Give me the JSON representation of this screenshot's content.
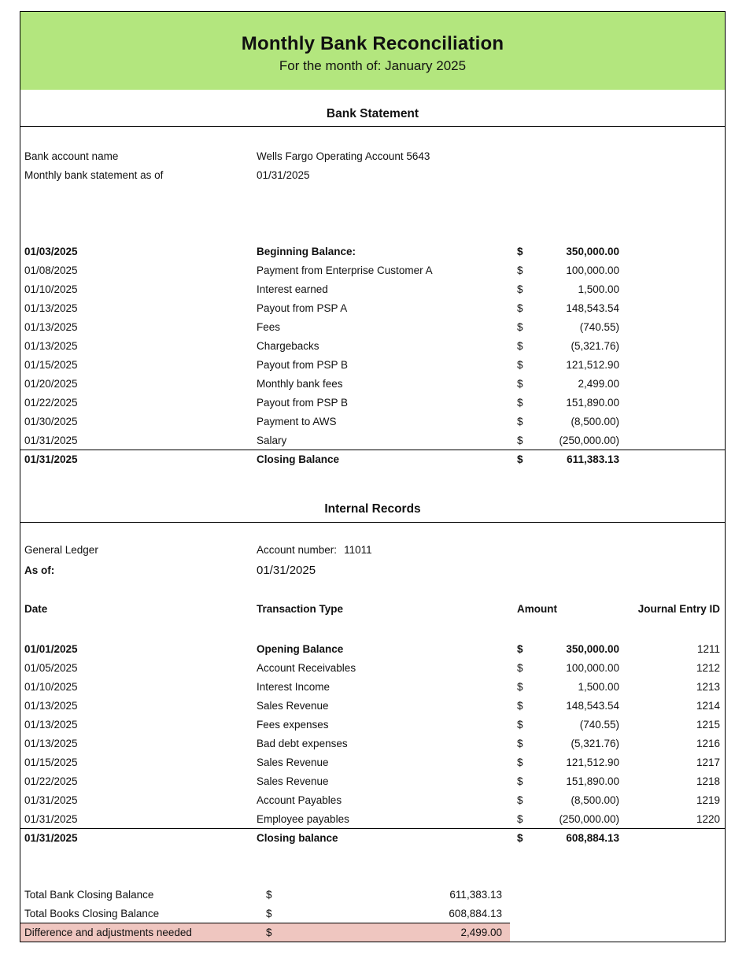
{
  "header": {
    "title": "Monthly Bank Reconciliation",
    "subtitle": "For the month of: January 2025",
    "banner_color": "#b3e67e"
  },
  "bank_statement": {
    "section_title": "Bank Statement",
    "info": {
      "account_label": "Bank account name",
      "account_value": "Wells Fargo Operating Account 5643",
      "statement_label": "Monthly bank statement as of",
      "statement_value": "01/31/2025"
    },
    "rows": [
      {
        "date": "01/03/2025",
        "description": "Beginning Balance:",
        "currency": "$",
        "amount": "350,000.00",
        "bold": true
      },
      {
        "date": "01/08/2025",
        "description": "Payment from Enterprise Customer A",
        "currency": "$",
        "amount": "100,000.00"
      },
      {
        "date": "01/10/2025",
        "description": "Interest earned",
        "currency": "$",
        "amount": "1,500.00"
      },
      {
        "date": "01/13/2025",
        "description": "Payout from PSP A",
        "currency": "$",
        "amount": "148,543.54"
      },
      {
        "date": "01/13/2025",
        "description": "Fees",
        "currency": "$",
        "amount": "(740.55)"
      },
      {
        "date": "01/13/2025",
        "description": "Chargebacks",
        "currency": "$",
        "amount": "(5,321.76)"
      },
      {
        "date": "01/15/2025",
        "description": "Payout from PSP B",
        "currency": "$",
        "amount": "121,512.90"
      },
      {
        "date": "01/20/2025",
        "description": "Monthly bank fees",
        "currency": "$",
        "amount": "2,499.00"
      },
      {
        "date": "01/22/2025",
        "description": "Payout from PSP B",
        "currency": "$",
        "amount": "151,890.00"
      },
      {
        "date": "01/30/2025",
        "description": "Payment to AWS",
        "currency": "$",
        "amount": "(8,500.00)"
      },
      {
        "date": "01/31/2025",
        "description": "Salary",
        "currency": "$",
        "amount": "(250,000.00)"
      }
    ],
    "closing": {
      "date": "01/31/2025",
      "description": "Closing Balance",
      "currency": "$",
      "amount": "611,383.13"
    }
  },
  "internal_records": {
    "section_title": "Internal Records",
    "ledger_label": "General Ledger",
    "account_number_label": "Account number:",
    "account_number": "11011",
    "as_of_label": "As of:",
    "as_of_date": "01/31/2025",
    "columns": {
      "date": "Date",
      "type": "Transaction Type",
      "amount": "Amount",
      "journal": "Journal Entry ID"
    },
    "rows": [
      {
        "date": "01/01/2025",
        "description": "Opening Balance",
        "currency": "$",
        "amount": "350,000.00",
        "journal_id": "1211",
        "bold": true
      },
      {
        "date": "01/05/2025",
        "description": "Account Receivables",
        "currency": "$",
        "amount": "100,000.00",
        "journal_id": "1212"
      },
      {
        "date": "01/10/2025",
        "description": "Interest Income",
        "currency": "$",
        "amount": "1,500.00",
        "journal_id": "1213"
      },
      {
        "date": "01/13/2025",
        "description": "Sales Revenue",
        "currency": "$",
        "amount": "148,543.54",
        "journal_id": "1214"
      },
      {
        "date": "01/13/2025",
        "description": "Fees expenses",
        "currency": "$",
        "amount": "(740.55)",
        "journal_id": "1215"
      },
      {
        "date": "01/13/2025",
        "description": "Bad debt expenses",
        "currency": "$",
        "amount": "(5,321.76)",
        "journal_id": "1216"
      },
      {
        "date": "01/15/2025",
        "description": "Sales Revenue",
        "currency": "$",
        "amount": "121,512.90",
        "journal_id": "1217"
      },
      {
        "date": "01/22/2025",
        "description": "Sales Revenue",
        "currency": "$",
        "amount": "151,890.00",
        "journal_id": "1218"
      },
      {
        "date": "01/31/2025",
        "description": "Account Payables",
        "currency": "$",
        "amount": "(8,500.00)",
        "journal_id": "1219"
      },
      {
        "date": "01/31/2025",
        "description": "Employee payables",
        "currency": "$",
        "amount": "(250,000.00)",
        "journal_id": "1220"
      }
    ],
    "closing": {
      "date": "01/31/2025",
      "description": "Closing balance",
      "currency": "$",
      "amount": "608,884.13"
    }
  },
  "summary": {
    "highlight_color": "#efc6c0",
    "rows": [
      {
        "label": "Total Bank Closing Balance",
        "currency": "$",
        "amount": "611,383.13"
      },
      {
        "label": "Total Books Closing Balance",
        "currency": "$",
        "amount": "608,884.13"
      },
      {
        "label": "Difference and adjustments needed",
        "currency": "$",
        "amount": "2,499.00",
        "highlight": true
      }
    ]
  }
}
